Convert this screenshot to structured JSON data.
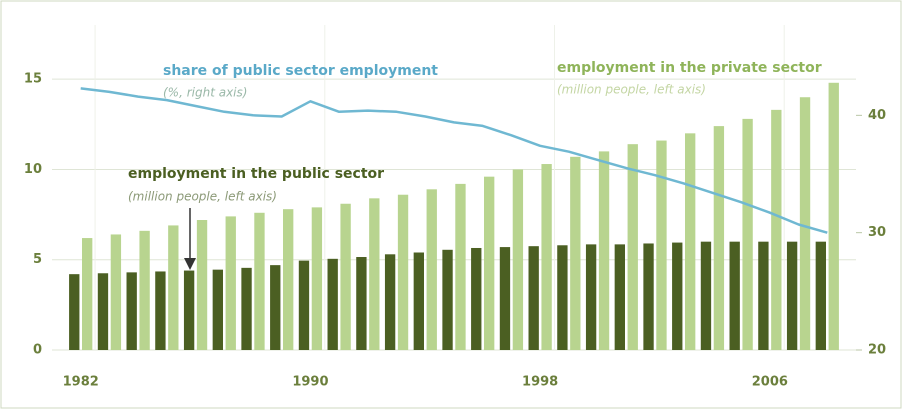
{
  "chart_data": {
    "type": "bar-line",
    "x": [
      1982,
      1983,
      1984,
      1985,
      1986,
      1987,
      1988,
      1989,
      1990,
      1991,
      1992,
      1993,
      1994,
      1995,
      1996,
      1997,
      1998,
      1999,
      2000,
      2001,
      2002,
      2003,
      2004,
      2005,
      2006,
      2007,
      2008
    ],
    "xlim": [
      1981,
      2009
    ],
    "xticks": [
      1982,
      1990,
      1998,
      2006
    ],
    "ylim": [
      0,
      18
    ],
    "yticks": [
      0,
      5,
      10,
      15
    ],
    "y2lim": [
      20,
      47.7
    ],
    "y2ticks": [
      20,
      30,
      40
    ],
    "grid": true,
    "series": [
      {
        "name": "employment in the public sector",
        "note": "(million people, left axis)",
        "type": "bar",
        "color": "#4b5f22",
        "values": [
          4.2,
          4.25,
          4.3,
          4.35,
          4.4,
          4.45,
          4.55,
          4.7,
          4.95,
          5.05,
          5.15,
          5.3,
          5.4,
          5.55,
          5.65,
          5.7,
          5.75,
          5.8,
          5.85,
          5.85,
          5.9,
          5.95,
          6.0,
          6.0,
          6.0,
          6.0,
          6.0
        ]
      },
      {
        "name": "employment in the private sector",
        "note": "(million people, left axis)",
        "type": "bar",
        "color": "#b8d48f",
        "values": [
          6.2,
          6.4,
          6.6,
          6.9,
          7.2,
          7.4,
          7.6,
          7.8,
          7.9,
          8.1,
          8.4,
          8.6,
          8.9,
          9.2,
          9.6,
          10.0,
          10.3,
          10.7,
          11.0,
          11.4,
          11.6,
          12.0,
          12.4,
          12.8,
          13.3,
          14.0,
          14.8
        ]
      },
      {
        "name": "share of public sector employment",
        "note": "(%, right axis)",
        "type": "line",
        "axis": "y2",
        "color": "#6fb8d2",
        "values": [
          42.3,
          42.0,
          41.6,
          41.3,
          40.8,
          40.3,
          40.0,
          39.9,
          41.2,
          40.3,
          40.4,
          40.3,
          39.9,
          39.4,
          39.1,
          38.3,
          37.4,
          36.9,
          36.2,
          35.5,
          34.9,
          34.2,
          33.4,
          32.6,
          31.7,
          30.7,
          30.0
        ]
      }
    ]
  }
}
